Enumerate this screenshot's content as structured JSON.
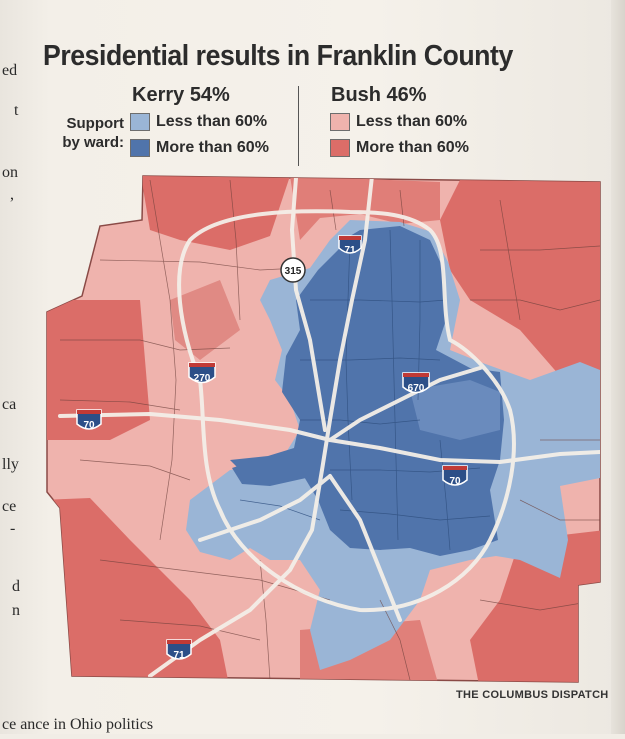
{
  "title": "Presidential results in Franklin County",
  "legend": {
    "support_label": "Support by ward:",
    "kerry": {
      "header": "Kerry 54%",
      "items": [
        {
          "label": "Less than 60%",
          "color": "#9ab5d6"
        },
        {
          "label": "More than 60%",
          "color": "#5074ab"
        }
      ]
    },
    "bush": {
      "header": "Bush 46%",
      "items": [
        {
          "label": "Less than 60%",
          "color": "#efb3ad"
        },
        {
          "label": "More than 60%",
          "color": "#db6d68"
        }
      ]
    }
  },
  "highways": [
    {
      "number": "71",
      "name": "interstate-71-north-shield"
    },
    {
      "number": "315",
      "name": "route-315-shield"
    },
    {
      "number": "270",
      "name": "interstate-270-shield"
    },
    {
      "number": "670",
      "name": "interstate-670-shield"
    },
    {
      "number": "70",
      "name": "interstate-70-west-shield"
    },
    {
      "number": "70",
      "name": "interstate-70-east-shield"
    },
    {
      "number": "71",
      "name": "interstate-71-south-shield"
    }
  ],
  "credit": "THE COLUMBUS DISPATCH",
  "side_text": [
    "ed",
    "t",
    "on",
    ",",
    "ca",
    "lly",
    "ce",
    "-",
    "d",
    "n"
  ],
  "bottom_text": "ce     ance in Ohio politics"
}
